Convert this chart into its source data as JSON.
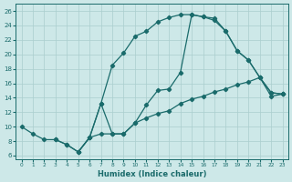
{
  "xlabel": "Humidex (Indice chaleur)",
  "bg_color": "#cde8e8",
  "grid_color": "#aacece",
  "line_color": "#1a6b6b",
  "xlim": [
    -0.5,
    23.5
  ],
  "ylim": [
    5.5,
    27
  ],
  "xticks": [
    0,
    1,
    2,
    3,
    4,
    5,
    6,
    7,
    8,
    9,
    10,
    11,
    12,
    13,
    14,
    15,
    16,
    17,
    18,
    19,
    20,
    21,
    22,
    23
  ],
  "yticks": [
    6,
    8,
    10,
    12,
    14,
    16,
    18,
    20,
    22,
    24,
    26
  ],
  "curve1_x": [
    0,
    1,
    2,
    3,
    4,
    5,
    6,
    7,
    8,
    9,
    10,
    11,
    12,
    13,
    14,
    15,
    16,
    17,
    18,
    19,
    20,
    21,
    22,
    23
  ],
  "curve1_y": [
    10,
    9,
    8.2,
    8.2,
    7.5,
    6.5,
    8.5,
    13.2,
    18.5,
    20.2,
    22.5,
    23.2,
    24.5,
    25.1,
    25.5,
    25.5,
    25.2,
    24.7,
    23.2,
    20.5,
    19.2,
    16.8,
    14.7,
    14.5
  ],
  "curve2_x": [
    3,
    4,
    5,
    6,
    7,
    8,
    9,
    10,
    11,
    12,
    13,
    14,
    15,
    16,
    17,
    18,
    19,
    20,
    21,
    22,
    23
  ],
  "curve2_y": [
    8.2,
    7.5,
    6.5,
    8.5,
    9.0,
    9.0,
    9.0,
    10.5,
    11.2,
    11.8,
    12.2,
    13.2,
    13.8,
    14.2,
    14.8,
    15.2,
    15.8,
    16.2,
    16.8,
    14.2,
    14.5
  ],
  "curve3_x": [
    5,
    6,
    7,
    8,
    9,
    10,
    11,
    12,
    13,
    14,
    15,
    16,
    17,
    18,
    19,
    20,
    21,
    22,
    23
  ],
  "curve3_y": [
    6.5,
    8.5,
    13.2,
    9.0,
    9.0,
    10.5,
    13.0,
    15.0,
    15.2,
    17.5,
    25.5,
    25.2,
    25.0,
    23.2,
    20.5,
    19.2,
    16.8,
    14.7,
    14.5
  ]
}
